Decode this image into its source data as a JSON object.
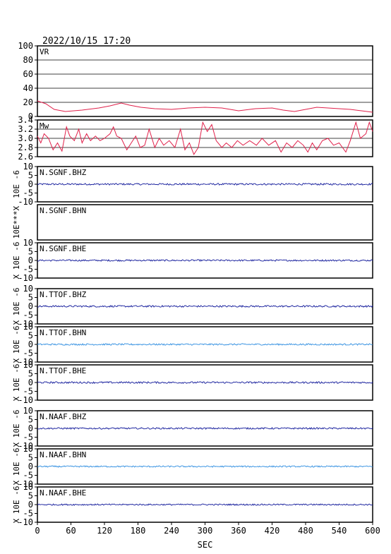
{
  "chart_data": {
    "type": "line",
    "timestamp": "2022/10/15 17:20",
    "xlabel": "SEC",
    "xlim": [
      0,
      600
    ],
    "x_ticks": [
      "0",
      "60",
      "120",
      "180",
      "240",
      "300",
      "360",
      "420",
      "480",
      "540",
      "600"
    ],
    "colors": {
      "vr": "#e0204a",
      "mw": "#e0204a",
      "dark_blue": "#10189a",
      "light_blue": "#2c8ce0",
      "frame": "#000000",
      "grid": "#000000"
    },
    "panels": [
      {
        "id": "vr",
        "label": "VR",
        "ylim": [
          0,
          100
        ],
        "y_ticks": [
          "0",
          "20",
          "40",
          "60",
          "80",
          "100"
        ],
        "grid": true,
        "points": [
          [
            0,
            22
          ],
          [
            15,
            18
          ],
          [
            30,
            10
          ],
          [
            50,
            7
          ],
          [
            80,
            9
          ],
          [
            110,
            12
          ],
          [
            130,
            15
          ],
          [
            150,
            19
          ],
          [
            165,
            16
          ],
          [
            185,
            13
          ],
          [
            210,
            11
          ],
          [
            240,
            10
          ],
          [
            270,
            12
          ],
          [
            300,
            13
          ],
          [
            330,
            12
          ],
          [
            360,
            8
          ],
          [
            390,
            11
          ],
          [
            420,
            12
          ],
          [
            440,
            9
          ],
          [
            460,
            7
          ],
          [
            480,
            10
          ],
          [
            500,
            13
          ],
          [
            520,
            12
          ],
          [
            540,
            11
          ],
          [
            560,
            10
          ],
          [
            580,
            8
          ],
          [
            600,
            6
          ]
        ]
      },
      {
        "id": "mw",
        "label": "Mw",
        "ylim": [
          2.6,
          3.4
        ],
        "y_ticks": [
          "2.6",
          "2.8",
          "3.0",
          "3.2",
          "3.4"
        ],
        "grid": true,
        "points": [
          [
            0,
            3.05
          ],
          [
            6,
            2.9
          ],
          [
            12,
            3.1
          ],
          [
            20,
            3.0
          ],
          [
            28,
            2.75
          ],
          [
            36,
            2.9
          ],
          [
            44,
            2.72
          ],
          [
            52,
            3.25
          ],
          [
            58,
            3.05
          ],
          [
            66,
            2.95
          ],
          [
            74,
            3.2
          ],
          [
            80,
            2.9
          ],
          [
            88,
            3.1
          ],
          [
            95,
            2.95
          ],
          [
            104,
            3.05
          ],
          [
            112,
            2.95
          ],
          [
            120,
            3.0
          ],
          [
            130,
            3.1
          ],
          [
            136,
            3.25
          ],
          [
            142,
            3.05
          ],
          [
            150,
            3.0
          ],
          [
            160,
            2.75
          ],
          [
            168,
            2.9
          ],
          [
            176,
            3.05
          ],
          [
            184,
            2.8
          ],
          [
            192,
            2.85
          ],
          [
            200,
            3.2
          ],
          [
            210,
            2.8
          ],
          [
            218,
            3.0
          ],
          [
            226,
            2.85
          ],
          [
            236,
            2.95
          ],
          [
            246,
            2.8
          ],
          [
            256,
            3.2
          ],
          [
            264,
            2.75
          ],
          [
            272,
            2.9
          ],
          [
            280,
            2.65
          ],
          [
            288,
            2.8
          ],
          [
            296,
            3.35
          ],
          [
            304,
            3.15
          ],
          [
            312,
            3.3
          ],
          [
            320,
            2.95
          ],
          [
            330,
            2.8
          ],
          [
            338,
            2.9
          ],
          [
            348,
            2.8
          ],
          [
            358,
            2.95
          ],
          [
            368,
            2.85
          ],
          [
            380,
            2.95
          ],
          [
            392,
            2.85
          ],
          [
            402,
            3.0
          ],
          [
            414,
            2.85
          ],
          [
            426,
            2.95
          ],
          [
            436,
            2.7
          ],
          [
            446,
            2.9
          ],
          [
            456,
            2.8
          ],
          [
            466,
            2.95
          ],
          [
            476,
            2.85
          ],
          [
            484,
            2.7
          ],
          [
            492,
            2.9
          ],
          [
            500,
            2.75
          ],
          [
            510,
            2.95
          ],
          [
            520,
            3.0
          ],
          [
            530,
            2.85
          ],
          [
            540,
            2.9
          ],
          [
            552,
            2.7
          ],
          [
            560,
            2.95
          ],
          [
            570,
            3.35
          ],
          [
            578,
            3.0
          ],
          [
            588,
            3.1
          ],
          [
            594,
            3.35
          ],
          [
            600,
            3.15
          ]
        ]
      },
      {
        "id": "sgnf-bhz",
        "label": "N.SGNF.BHZ",
        "ylim": [
          -10,
          10
        ],
        "y_ticks": [
          "-10",
          "-5",
          "0",
          "5",
          "10"
        ],
        "color": "dark_blue",
        "amplitude": 0.5,
        "ylabel": "10E -6"
      },
      {
        "id": "sgnf-bhn",
        "label": "N.SGNF.BHN",
        "ylim": null,
        "y_ticks": [],
        "color": "dark_blue",
        "amplitude": 0,
        "ylabel": "10E***X"
      },
      {
        "id": "sgnf-bhe",
        "label": "N.SGNF.BHE",
        "ylim": [
          -10,
          10
        ],
        "y_ticks": [
          "-10",
          "-5",
          "0",
          "5",
          "10"
        ],
        "color": "dark_blue",
        "amplitude": 0.45,
        "ylabel": "X 10E -6"
      },
      {
        "id": "ttof-bhz",
        "label": "N.TTOF.BHZ",
        "ylim": [
          -10,
          10
        ],
        "y_ticks": [
          "-10",
          "-5",
          "0",
          "5",
          "10"
        ],
        "color": "dark_blue",
        "amplitude": 0.5,
        "ylabel": "X 10E -6"
      },
      {
        "id": "ttof-bhn",
        "label": "N.TTOF.BHN",
        "ylim": [
          -10,
          10
        ],
        "y_ticks": [
          "-10",
          "-5",
          "0",
          "5",
          "10"
        ],
        "color": "light_blue",
        "amplitude": 0.45,
        "ylabel": "X 10E -6"
      },
      {
        "id": "ttof-bhe",
        "label": "N.TTOF.BHE",
        "ylim": [
          -10,
          10
        ],
        "y_ticks": [
          "-10",
          "-5",
          "0",
          "5",
          "10"
        ],
        "color": "dark_blue",
        "amplitude": 0.5,
        "ylabel": "X 10E -6"
      },
      {
        "id": "naaf-bhz",
        "label": "N.NAAF.BHZ",
        "ylim": [
          -10,
          10
        ],
        "y_ticks": [
          "-10",
          "-5",
          "0",
          "5",
          "10"
        ],
        "color": "dark_blue",
        "amplitude": 0.45,
        "ylabel": "X 10E -6"
      },
      {
        "id": "naaf-bhn",
        "label": "N.NAAF.BHN",
        "ylim": [
          -10,
          10
        ],
        "y_ticks": [
          "-10",
          "-5",
          "0",
          "5",
          "10"
        ],
        "color": "light_blue",
        "amplitude": 0.4,
        "ylabel": "X 10E -6"
      },
      {
        "id": "naaf-bhe",
        "label": "N.NAAF.BHE",
        "ylim": [
          -10,
          10
        ],
        "y_ticks": [
          "-10",
          "-5",
          "0",
          "5",
          "10"
        ],
        "color": "dark_blue",
        "amplitude": 0.4,
        "ylabel": "X 10E -6"
      }
    ]
  }
}
